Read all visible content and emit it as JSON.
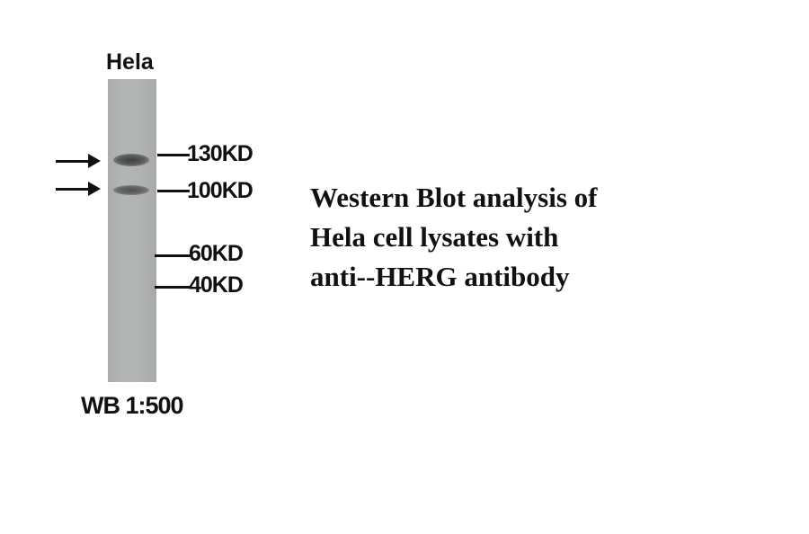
{
  "lane_label": "Hela",
  "markers": [
    {
      "label": "130KD",
      "kd": 130
    },
    {
      "label": "100KD",
      "kd": 100
    },
    {
      "label": "60KD",
      "kd": 60
    },
    {
      "label": "40KD",
      "kd": 40
    }
  ],
  "bands_kd": [
    130,
    100
  ],
  "dilution_label": "WB 1:500",
  "caption": {
    "line1": "Western Blot analysis of",
    "line2": "Hela cell lysates with",
    "line3": "anti--HERG antibody"
  }
}
